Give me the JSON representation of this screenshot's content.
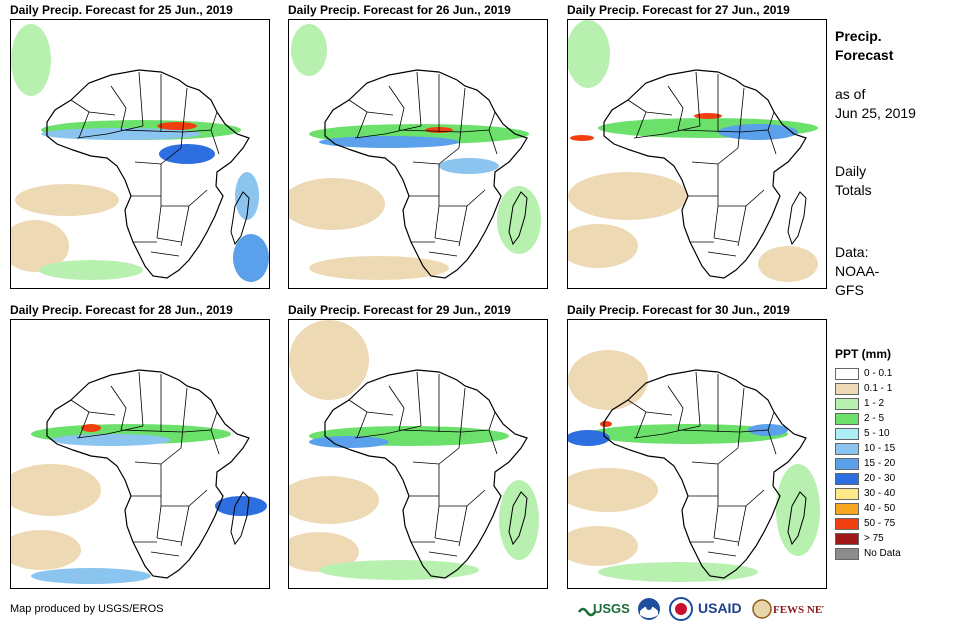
{
  "panels": [
    {
      "title": "Daily Precip. Forecast for 25 Jun., 2019"
    },
    {
      "title": "Daily Precip. Forecast for 26 Jun., 2019"
    },
    {
      "title": "Daily Precip. Forecast for 27 Jun., 2019"
    },
    {
      "title": "Daily Precip. Forecast for 28 Jun., 2019"
    },
    {
      "title": "Daily Precip. Forecast for 29 Jun., 2019"
    },
    {
      "title": "Daily Precip. Forecast for 30 Jun., 2019"
    }
  ],
  "sidebar": {
    "title_line1": "Precip.",
    "title_line2": "Forecast",
    "asof_line1": "as of",
    "asof_line2": "Jun 25, 2019",
    "totals_line1": "Daily",
    "totals_line2": "Totals",
    "data_line1": "Data:",
    "data_line2": "NOAA-",
    "data_line3": "GFS"
  },
  "legend": {
    "title": "PPT (mm)",
    "items": [
      {
        "label": "0 - 0.1",
        "color": "#ffffff"
      },
      {
        "label": "0.1 - 1",
        "color": "#eed9b5"
      },
      {
        "label": "1 - 2",
        "color": "#b8f0b0"
      },
      {
        "label": "2 - 5",
        "color": "#6be06b"
      },
      {
        "label": "5 - 10",
        "color": "#b0eef5"
      },
      {
        "label": "10 - 15",
        "color": "#8cc4f0"
      },
      {
        "label": "15 - 20",
        "color": "#5aa0ea"
      },
      {
        "label": "20 - 30",
        "color": "#2d6ee0"
      },
      {
        "label": "30 - 40",
        "color": "#ffe88a"
      },
      {
        "label": "40 - 50",
        "color": "#f5a623"
      },
      {
        "label": "50 - 75",
        "color": "#f04010"
      },
      {
        "label": "> 75",
        "color": "#a01818"
      },
      {
        "label": "No Data",
        "color": "#8c8c8c"
      }
    ]
  },
  "footer": {
    "credit": "Map produced by USGS/EROS",
    "logo_usgs": "USGS",
    "logo_usaid": "USAID",
    "logo_fews": "FEWS NET"
  }
}
